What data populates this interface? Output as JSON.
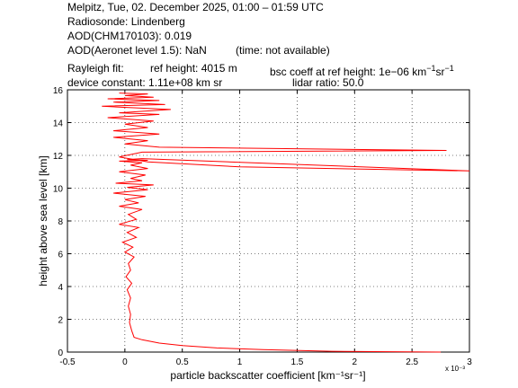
{
  "header": {
    "line1": "Melpitz, Tue, 02. December 2025, 01:00 – 01:59 UTC",
    "line2": "Radiosonde: Lindenberg",
    "line3": "AOD(CHM170103): 0.019",
    "line4a": "AOD(Aeronet level 1.5): NaN",
    "line4b": "(time: not available)",
    "rayleigh_label": "Rayleigh fit:",
    "ref_height": "ref height: 4015 m",
    "bsc_coeff_prefix": "bsc coeff at ref height: 1e−06 km",
    "device_constant": "device constant: 1.11e+08 km sr",
    "lidar_ratio": "lidar ratio: 50.0"
  },
  "chart_data": {
    "type": "line",
    "xlabel": "particle backscatter coefficient [km⁻¹sr⁻¹]",
    "ylabel": "height above sea level [km]",
    "x_multiplier_label": "x 10⁻³",
    "xlim": [
      -0.5,
      3.0
    ],
    "ylim": [
      0,
      16
    ],
    "xticks": [
      -0.5,
      0,
      0.5,
      1,
      1.5,
      2,
      2.5,
      3
    ],
    "xtick_labels": [
      "-0.5",
      "0",
      "0.5",
      "1",
      "1.5",
      "2",
      "2.5",
      "3"
    ],
    "yticks": [
      0,
      2,
      4,
      6,
      8,
      10,
      12,
      14,
      16
    ],
    "ytick_labels": [
      "0",
      "2",
      "4",
      "6",
      "8",
      "10",
      "12",
      "14",
      "16"
    ],
    "grid": true,
    "color": "#ff0000",
    "series": [
      {
        "x": [
          2.75,
          1.8,
          1.2,
          0.8,
          0.5,
          0.3,
          0.15,
          0.08,
          0.06,
          0.04,
          0.05,
          0.03,
          0.05,
          0.02,
          0.06,
          0.01,
          0.05,
          0.03,
          0.08,
          0.0,
          0.07,
          -0.02,
          0.1,
          0.02,
          0.12,
          -0.05,
          0.1,
          0.03,
          0.15,
          -0.05,
          0.12,
          0.0,
          0.18,
          -0.1,
          0.2,
          0.02,
          0.25,
          -0.08,
          0.15,
          0.05,
          0.18,
          -0.05,
          0.2,
          0.05,
          0.15,
          -0.05,
          0.2,
          0.02,
          0.15,
          3.0,
          1.0,
          0.2,
          -0.05,
          0.15,
          2.8,
          0.3,
          0.0,
          0.2,
          -0.1,
          0.3,
          -0.1,
          0.2,
          0.0,
          0.25,
          -0.15,
          0.3,
          -0.05,
          0.4,
          -0.2,
          0.35,
          -0.1,
          0.3,
          -0.15,
          0.25,
          0.0,
          0.2,
          -0.05
        ],
        "y": [
          0.0,
          0.05,
          0.15,
          0.25,
          0.4,
          0.55,
          0.75,
          0.9,
          1.3,
          1.8,
          2.3,
          2.8,
          3.3,
          3.8,
          4.2,
          4.6,
          5.0,
          5.4,
          5.8,
          6.1,
          6.4,
          6.7,
          7.0,
          7.3,
          7.6,
          7.8,
          8.1,
          8.4,
          8.7,
          8.9,
          9.1,
          9.3,
          9.5,
          9.7,
          9.9,
          10.05,
          10.2,
          10.3,
          10.45,
          10.6,
          10.8,
          11.0,
          11.2,
          11.4,
          11.55,
          11.65,
          11.7,
          11.75,
          11.8,
          11.05,
          11.3,
          11.6,
          11.9,
          12.2,
          12.3,
          12.5,
          12.7,
          12.9,
          13.1,
          13.3,
          13.5,
          13.7,
          13.9,
          14.1,
          14.3,
          14.5,
          14.6,
          14.8,
          15.0,
          15.1,
          15.25,
          15.35,
          15.45,
          15.55,
          15.65,
          15.75,
          15.8
        ]
      }
    ]
  }
}
